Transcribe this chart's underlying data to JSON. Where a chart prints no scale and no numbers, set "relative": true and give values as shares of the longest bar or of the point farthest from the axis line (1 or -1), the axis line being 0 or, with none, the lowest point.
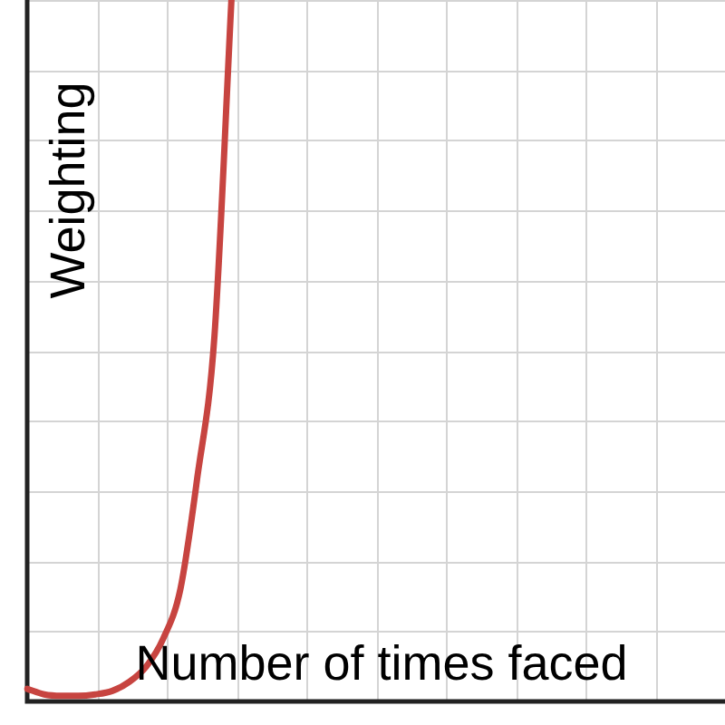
{
  "chart_data": {
    "type": "line",
    "relative": true,
    "xlabel": "Number of times faced",
    "ylabel": "Weighting",
    "grid": true,
    "legend": false,
    "marker": "none",
    "line_style": "solid",
    "categories": [
      null,
      null,
      null,
      null,
      null,
      null,
      null,
      null,
      null,
      null,
      null,
      null,
      null,
      null,
      null,
      null,
      null,
      null,
      null,
      null,
      null,
      null,
      null,
      null,
      null,
      null,
      null,
      null,
      null,
      null,
      null,
      null,
      null,
      null,
      null,
      null,
      null,
      null,
      null,
      null,
      null,
      null
    ],
    "series": [
      {
        "color": "#c74440",
        "values": [
          0.018,
          0.01,
          0.008,
          0.008,
          0.01,
          0.015,
          0.028,
          0.05,
          0.09,
          0.16,
          0.32,
          0.52,
          1,
          null,
          null,
          null,
          null,
          null,
          null,
          null,
          null,
          null,
          null,
          null,
          null,
          null,
          null,
          null,
          null,
          null,
          null,
          null,
          null,
          null,
          null,
          null,
          null,
          null,
          null,
          null,
          null,
          null
        ]
      }
    ]
  }
}
